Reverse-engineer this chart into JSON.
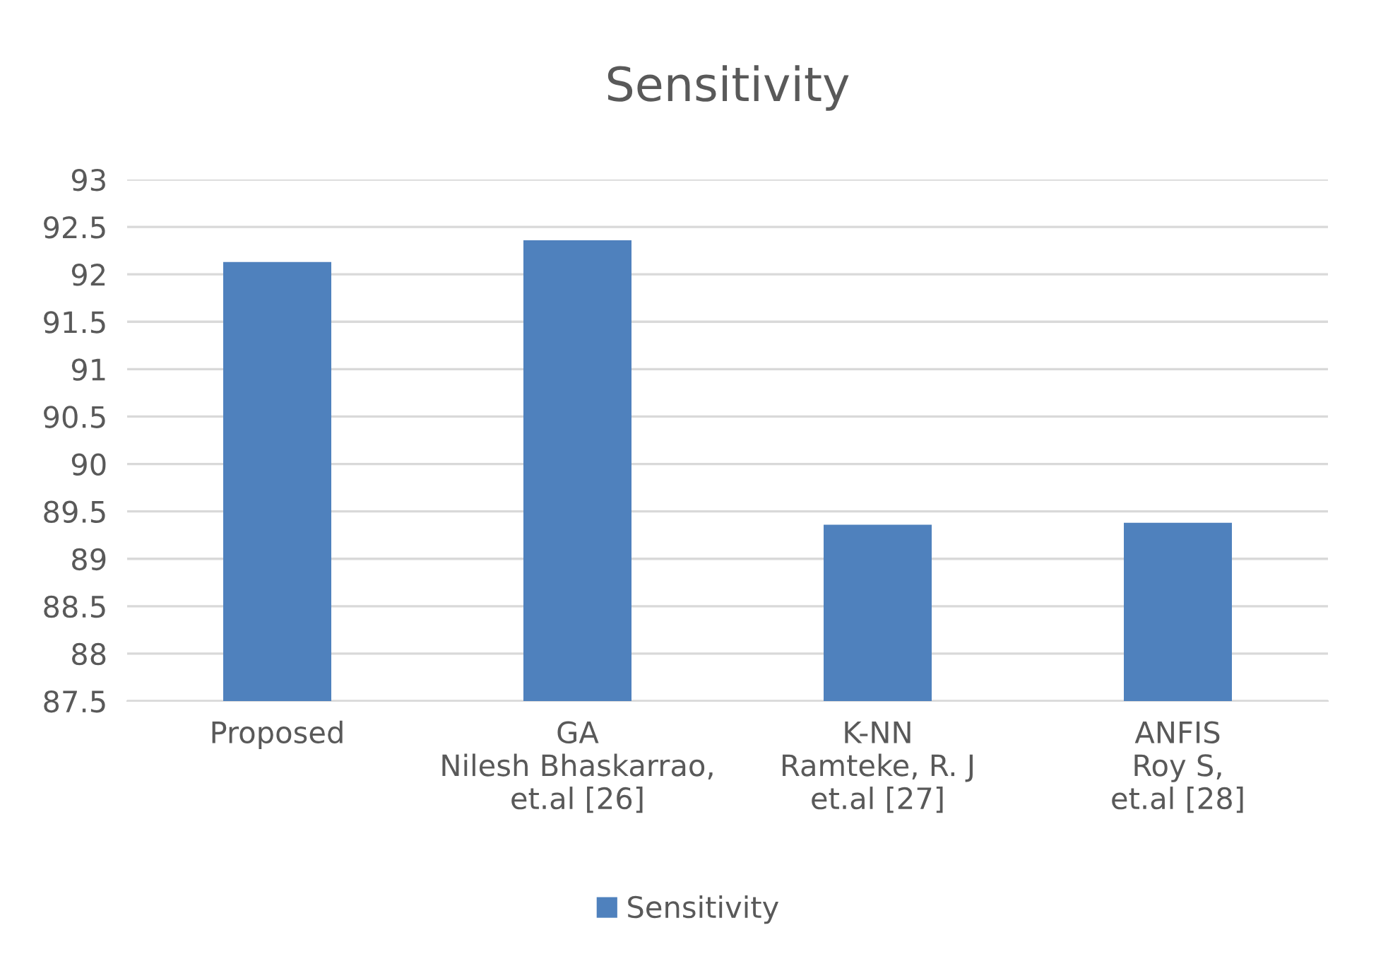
{
  "chart_data": {
    "type": "bar",
    "title": "Sensitivity",
    "categories": [
      "Proposed",
      "GA\nNilesh Bhaskarrao,\net.al [26]",
      "K-NN\nRamteke, R. J\net.al [27]",
      "ANFIS\nRoy S,\net.al [28]"
    ],
    "series": [
      {
        "name": "Sensitivity",
        "color": "#4f81bd",
        "values": [
          92.13,
          92.36,
          89.36,
          89.38
        ]
      }
    ],
    "ylim": [
      87.5,
      93
    ],
    "yticks": [
      87.5,
      88,
      88.5,
      89,
      89.5,
      90,
      90.5,
      91,
      91.5,
      92,
      92.5,
      93
    ],
    "grid": "y",
    "legend": "bottom"
  }
}
